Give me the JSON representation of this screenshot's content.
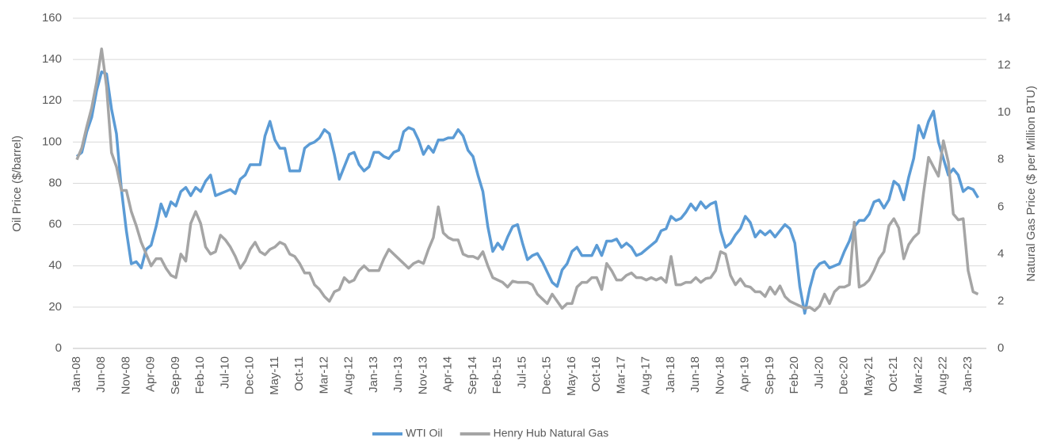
{
  "chart_data": {
    "type": "line",
    "y_label": "Oil Price ($/barrel)",
    "y2_label": "Natural Gas Price ($ per Million BTU)",
    "categories": [
      "Jan-08",
      null,
      null,
      null,
      null,
      "Jun-08",
      null,
      null,
      null,
      null,
      "Nov-08",
      null,
      null,
      null,
      null,
      "Apr-09",
      null,
      null,
      null,
      null,
      "Sep-09",
      null,
      null,
      null,
      null,
      "Feb-10",
      null,
      null,
      null,
      null,
      "Jul-10",
      null,
      null,
      null,
      null,
      "Dec-10",
      null,
      null,
      null,
      null,
      "May-11",
      null,
      null,
      null,
      null,
      "Oct-11",
      null,
      null,
      null,
      null,
      "Mar-12",
      null,
      null,
      null,
      null,
      "Aug-12",
      null,
      null,
      null,
      null,
      "Jan-13",
      null,
      null,
      null,
      null,
      "Jun-13",
      null,
      null,
      null,
      null,
      "Nov-13",
      null,
      null,
      null,
      null,
      "Apr-14",
      null,
      null,
      null,
      null,
      "Sep-14",
      null,
      null,
      null,
      null,
      "Feb-15",
      null,
      null,
      null,
      null,
      "Jul-15",
      null,
      null,
      null,
      null,
      "Dec-15",
      null,
      null,
      null,
      null,
      "May-16",
      null,
      null,
      null,
      null,
      "Oct-16",
      null,
      null,
      null,
      null,
      "Mar-17",
      null,
      null,
      null,
      null,
      "Aug-17",
      null,
      null,
      null,
      null,
      "Jan-18",
      null,
      null,
      null,
      null,
      "Jun-18",
      null,
      null,
      null,
      null,
      "Nov-18",
      null,
      null,
      null,
      null,
      "Apr-19",
      null,
      null,
      null,
      null,
      "Sep-19",
      null,
      null,
      null,
      null,
      "Feb-20",
      null,
      null,
      null,
      null,
      "Jul-20",
      null,
      null,
      null,
      null,
      "Dec-20",
      null,
      null,
      null,
      null,
      "May-21",
      null,
      null,
      null,
      null,
      "Oct-21",
      null,
      null,
      null,
      null,
      "Mar-22",
      null,
      null,
      null,
      null,
      "Aug-22",
      null,
      null,
      null,
      null,
      "Jan-23",
      null,
      null
    ],
    "series": [
      {
        "name": "WTI Oil",
        "color": "#5b9bd5",
        "axis": "y",
        "values": [
          93,
          95,
          105,
          112,
          125,
          134,
          133,
          116,
          104,
          77,
          57,
          41,
          42,
          39,
          48,
          50,
          59,
          70,
          64,
          71,
          69,
          76,
          78,
          74,
          78,
          76,
          81,
          84,
          74,
          75,
          76,
          77,
          75,
          82,
          84,
          89,
          89,
          89,
          103,
          110,
          101,
          97,
          97,
          86,
          86,
          86,
          97,
          99,
          100,
          102,
          106,
          104,
          94,
          82,
          88,
          94,
          95,
          89,
          86,
          88,
          95,
          95,
          93,
          92,
          95,
          96,
          105,
          107,
          106,
          101,
          94,
          98,
          95,
          101,
          101,
          102,
          102,
          106,
          103,
          96,
          93,
          84,
          76,
          59,
          47,
          51,
          48,
          54,
          59,
          60,
          51,
          43,
          45,
          46,
          42,
          37,
          32,
          30,
          38,
          41,
          47,
          49,
          45,
          45,
          45,
          50,
          45,
          52,
          52,
          53,
          49,
          51,
          49,
          45,
          46,
          48,
          50,
          52,
          57,
          58,
          64,
          62,
          63,
          66,
          70,
          67,
          71,
          68,
          70,
          71,
          57,
          49,
          51,
          55,
          58,
          64,
          61,
          54,
          57,
          55,
          57,
          54,
          57,
          60,
          58,
          51,
          30,
          17,
          29,
          38,
          41,
          42,
          39,
          40,
          41,
          47,
          52,
          59,
          62,
          62,
          65,
          71,
          72,
          68,
          72,
          81,
          79,
          72,
          83,
          92,
          108,
          102,
          110,
          115,
          100,
          92,
          84,
          87,
          84,
          76,
          78,
          77,
          73
        ]
      },
      {
        "name": "Henry Hub Natural Gas",
        "color": "#a5a5a5",
        "axis": "y2",
        "values": [
          8.0,
          8.5,
          9.4,
          10.2,
          11.3,
          12.7,
          11.1,
          8.3,
          7.7,
          6.7,
          6.7,
          5.8,
          5.2,
          4.5,
          4.0,
          3.5,
          3.8,
          3.8,
          3.4,
          3.1,
          3.0,
          4.0,
          3.7,
          5.3,
          5.8,
          5.3,
          4.3,
          4.0,
          4.1,
          4.8,
          4.6,
          4.3,
          3.9,
          3.4,
          3.7,
          4.2,
          4.5,
          4.1,
          3.97,
          4.2,
          4.3,
          4.5,
          4.4,
          4.0,
          3.9,
          3.6,
          3.2,
          3.2,
          2.7,
          2.5,
          2.2,
          2.0,
          2.4,
          2.5,
          3.0,
          2.8,
          2.9,
          3.3,
          3.5,
          3.3,
          3.3,
          3.3,
          3.8,
          4.2,
          4.0,
          3.8,
          3.6,
          3.4,
          3.6,
          3.7,
          3.6,
          4.2,
          4.7,
          6.0,
          4.9,
          4.7,
          4.6,
          4.6,
          4.0,
          3.9,
          3.9,
          3.8,
          4.1,
          3.5,
          3.0,
          2.9,
          2.8,
          2.6,
          2.85,
          2.8,
          2.8,
          2.8,
          2.7,
          2.3,
          2.1,
          1.9,
          2.3,
          2.0,
          1.7,
          1.9,
          1.9,
          2.6,
          2.8,
          2.8,
          3.0,
          3.0,
          2.5,
          3.6,
          3.3,
          2.9,
          2.9,
          3.1,
          3.2,
          3.0,
          3.0,
          2.9,
          3.0,
          2.9,
          3.0,
          2.8,
          3.9,
          2.7,
          2.7,
          2.8,
          2.8,
          3.0,
          2.8,
          2.96,
          3.0,
          3.3,
          4.1,
          4.0,
          3.1,
          2.7,
          2.95,
          2.65,
          2.6,
          2.4,
          2.4,
          2.2,
          2.6,
          2.3,
          2.65,
          2.2,
          2.0,
          1.9,
          1.8,
          1.7,
          1.75,
          1.6,
          1.8,
          2.3,
          1.9,
          2.4,
          2.6,
          2.6,
          2.7,
          5.35,
          2.6,
          2.7,
          2.9,
          3.3,
          3.8,
          4.1,
          5.2,
          5.5,
          5.1,
          3.8,
          4.4,
          4.7,
          4.9,
          6.6,
          8.1,
          7.7,
          7.3,
          8.8,
          7.9,
          5.7,
          5.45,
          5.5,
          3.3,
          2.4,
          2.3
        ]
      }
    ],
    "ylim": [
      0,
      160
    ],
    "yticks": [
      0,
      20,
      40,
      60,
      80,
      100,
      120,
      140,
      160
    ],
    "y2lim": [
      0,
      14
    ],
    "y2ticks": [
      0,
      2,
      4,
      6,
      8,
      10,
      12,
      14
    ],
    "grid": true,
    "legend": "bottom"
  }
}
